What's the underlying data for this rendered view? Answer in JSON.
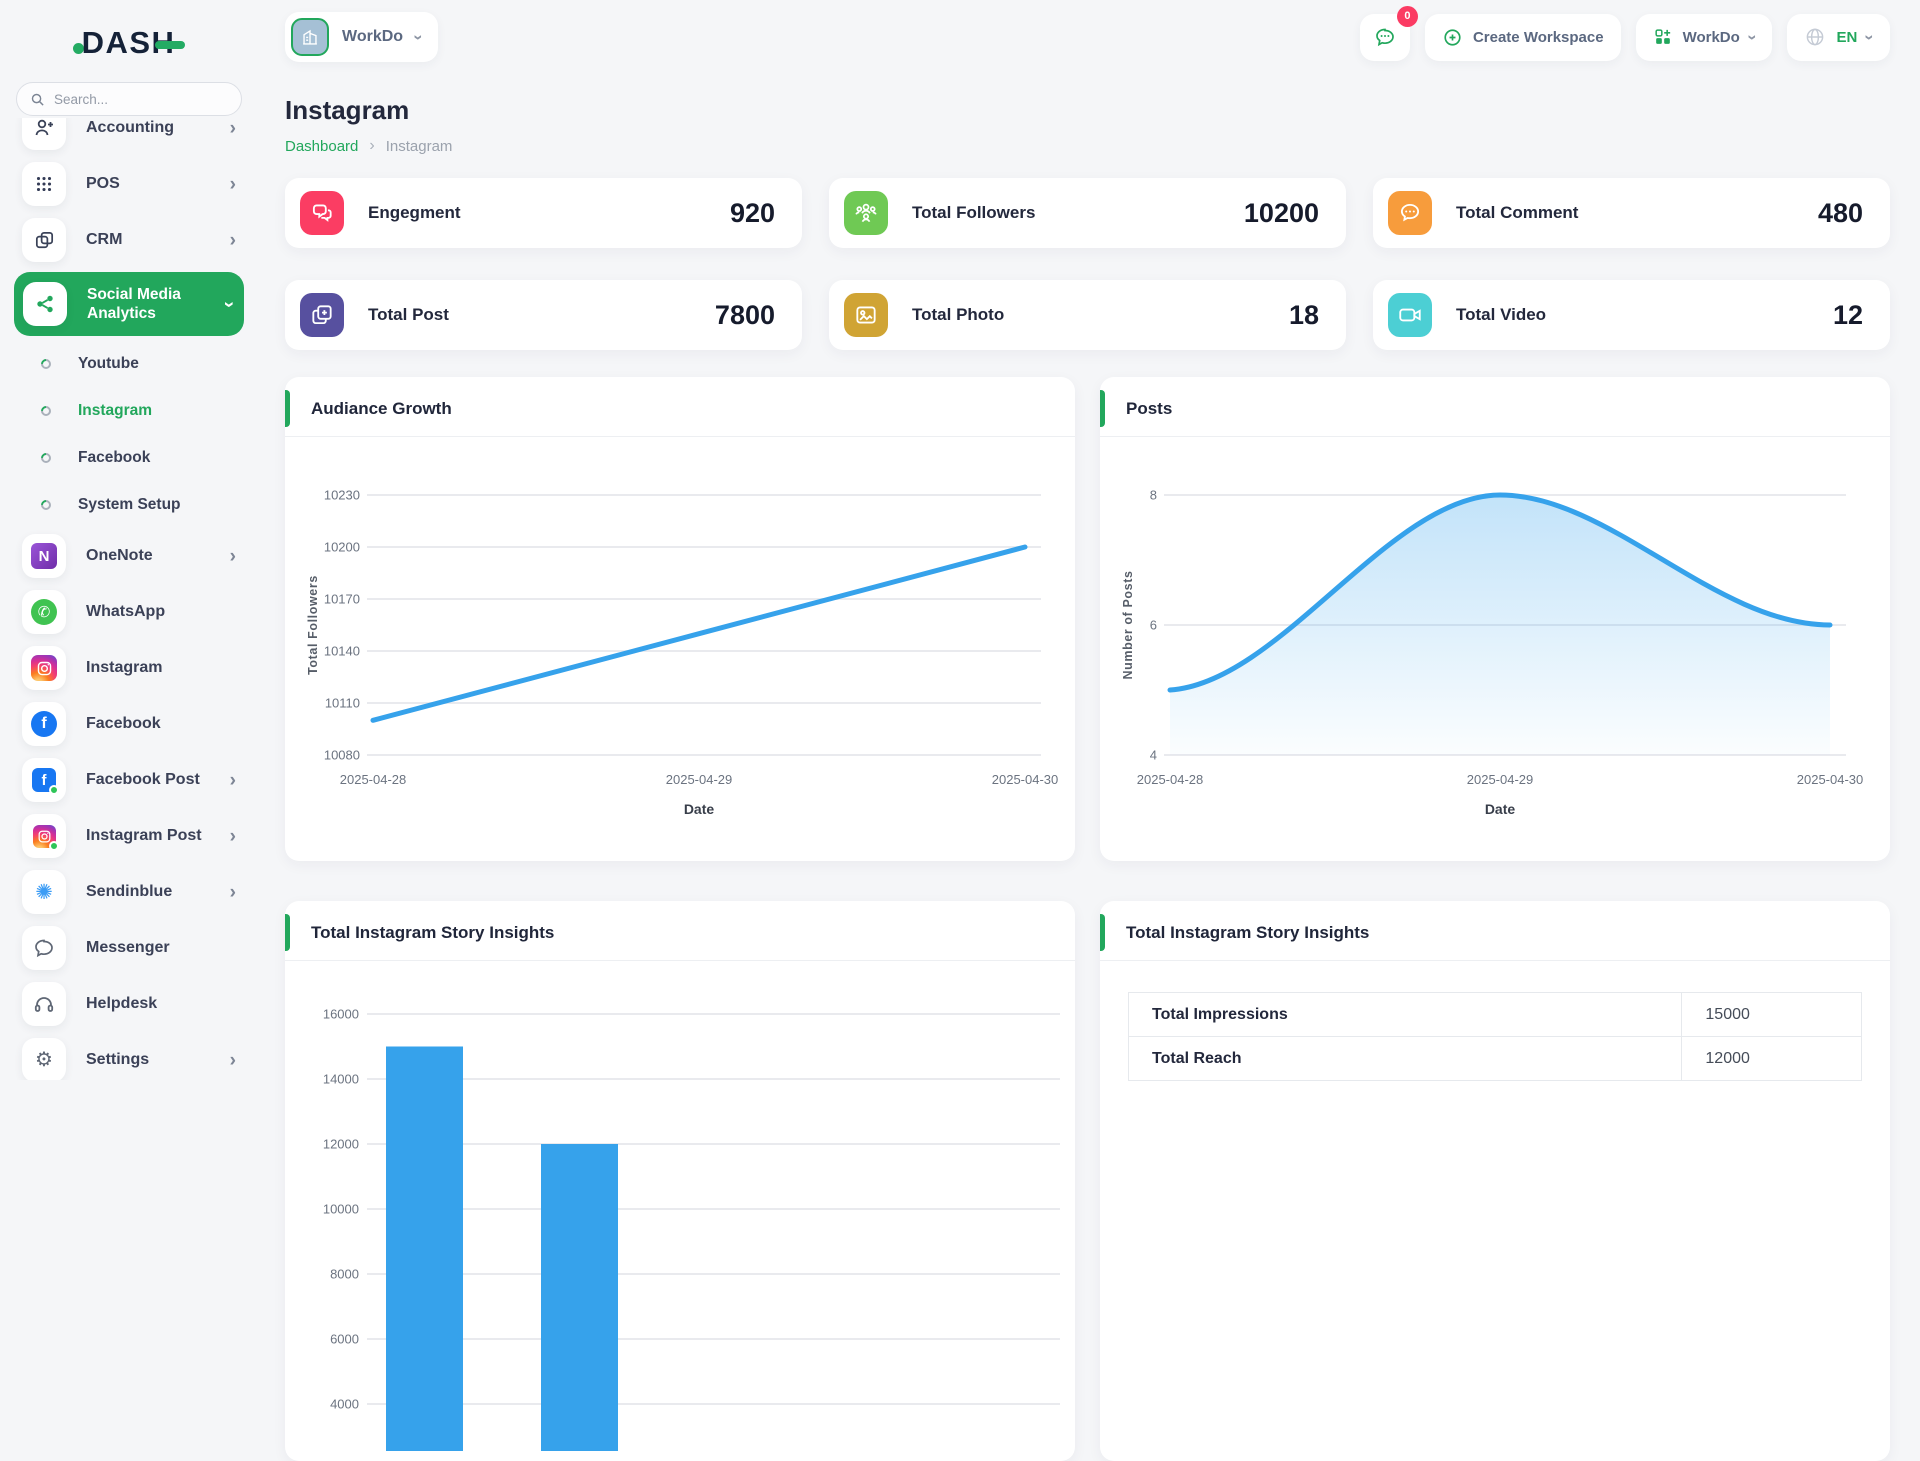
{
  "brand": {
    "logo_text": "DASH"
  },
  "colors": {
    "primary_green": "#22a75c",
    "chart_blue": "#36a2eb",
    "badge_red": "#fb3b63"
  },
  "sidebar": {
    "search_placeholder": "Search...",
    "menu": [
      {
        "label": "Accounting",
        "icon": "user-plus-icon",
        "chevron": "right"
      },
      {
        "label": "POS",
        "icon": "grid-dots-icon",
        "chevron": "right"
      },
      {
        "label": "CRM",
        "icon": "cards-icon",
        "chevron": "right"
      },
      {
        "label": "Social Media Analytics",
        "label_line1": "Social Media",
        "label_line2": "Analytics",
        "icon": "share-nodes-icon",
        "chevron": "down",
        "active": true
      }
    ],
    "submenu": [
      {
        "label": "Youtube"
      },
      {
        "label": "Instagram",
        "active": true
      },
      {
        "label": "Facebook"
      },
      {
        "label": "System Setup"
      }
    ],
    "apps": [
      {
        "label": "OneNote",
        "icon": "onenote-icon",
        "chevron": "right"
      },
      {
        "label": "WhatsApp",
        "icon": "whatsapp-icon"
      },
      {
        "label": "Instagram",
        "icon": "instagram-icon"
      },
      {
        "label": "Facebook",
        "icon": "facebook-icon"
      },
      {
        "label": "Facebook Post",
        "icon": "facebook-post-icon",
        "chevron": "right"
      },
      {
        "label": "Instagram Post",
        "icon": "instagram-post-icon",
        "chevron": "right"
      },
      {
        "label": "Sendinblue",
        "icon": "sendinblue-icon",
        "chevron": "right"
      },
      {
        "label": "Messenger",
        "icon": "messenger-icon"
      },
      {
        "label": "Helpdesk",
        "icon": "headphones-icon"
      },
      {
        "label": "Settings",
        "icon": "gear-icon",
        "chevron": "right"
      }
    ]
  },
  "topbar": {
    "workspace_label": "WorkDo",
    "badge_count": "0",
    "create_workspace_label": "Create Workspace",
    "workdo_label": "WorkDo",
    "language": "EN"
  },
  "page": {
    "title": "Instagram",
    "breadcrumb": [
      "Dashboard",
      "Instagram"
    ]
  },
  "stats": [
    {
      "label": "Engegment",
      "value": "920",
      "color": "#fb3d63",
      "icon": "chat-engagement-icon"
    },
    {
      "label": "Total Followers",
      "value": "10200",
      "color": "#6fc954",
      "icon": "followers-icon"
    },
    {
      "label": "Total Comment",
      "value": "480",
      "color": "#f79c3c",
      "icon": "comment-icon"
    },
    {
      "label": "Total Post",
      "value": "7800",
      "color": "#57509f",
      "icon": "post-icon"
    },
    {
      "label": "Total Photo",
      "value": "18",
      "color": "#d0a434",
      "icon": "photo-icon"
    },
    {
      "label": "Total Video",
      "value": "12",
      "color": "#4ccfd4",
      "icon": "video-icon"
    }
  ],
  "chart_data": [
    {
      "id": "audience_growth",
      "type": "line",
      "title": "Audiance Growth",
      "x": [
        "2025-04-28",
        "2025-04-29",
        "2025-04-30"
      ],
      "values": [
        10100,
        10150,
        10200
      ],
      "xlabel": "Date",
      "ylabel": "Total Followers",
      "ylim": [
        10080,
        10230
      ],
      "yticks": [
        10080,
        10110,
        10140,
        10170,
        10200,
        10230
      ],
      "grid": true,
      "legend": "none",
      "line_color": "#36a2eb"
    },
    {
      "id": "posts",
      "type": "area",
      "title": "Posts",
      "x": [
        "2025-04-28",
        "2025-04-29",
        "2025-04-30"
      ],
      "values": [
        5,
        8,
        6
      ],
      "xlabel": "Date",
      "ylabel": "Number of Posts",
      "ylim": [
        4,
        8
      ],
      "yticks": [
        4,
        6,
        8
      ],
      "grid": true,
      "legend": "none",
      "line_color": "#36a2eb",
      "fill": "blue-gradient"
    },
    {
      "id": "story_insights",
      "type": "bar",
      "title": "Total Instagram Story Insights",
      "categories": [
        "Total Impressions",
        "Total Reach"
      ],
      "values": [
        15000,
        12000
      ],
      "ylim": [
        0,
        16000
      ],
      "tick_step": 2000,
      "grid": true,
      "legend": "none",
      "bar_color": "#36a2eb",
      "visible_yticks": [
        16000,
        14000
      ]
    }
  ],
  "story_table": {
    "title": "Total Instagram Story Insights",
    "rows": [
      [
        "Total Impressions",
        "15000"
      ],
      [
        "Total Reach",
        "12000"
      ]
    ]
  }
}
